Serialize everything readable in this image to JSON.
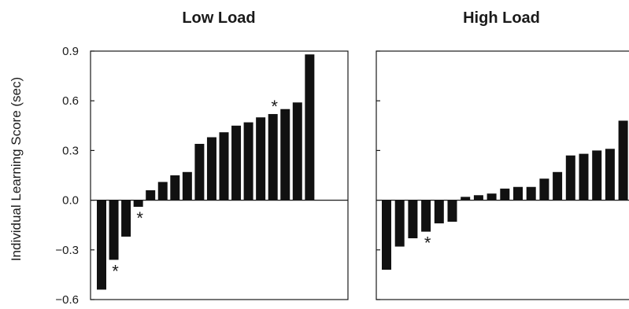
{
  "chart_data": {
    "type": "bar",
    "ylabel": "Individual Learning Score (sec)",
    "ylim": [
      -0.6,
      0.9
    ],
    "yticks": [
      "0.9",
      "0.6",
      "0.3",
      "0.0",
      "−0.3",
      "−0.6"
    ],
    "ytick_values": [
      0.9,
      0.6,
      0.3,
      0.0,
      -0.3,
      -0.6
    ],
    "bar_color": "#111111",
    "annotation_symbol": "*",
    "panels": [
      {
        "title": "Low Load",
        "values": [
          -0.54,
          -0.36,
          -0.22,
          -0.04,
          0.06,
          0.11,
          0.15,
          0.17,
          0.34,
          0.38,
          0.41,
          0.45,
          0.47,
          0.5,
          0.52,
          0.55,
          0.59,
          0.88
        ],
        "marked": [
          1,
          3,
          14
        ]
      },
      {
        "title": "High Load",
        "values": [
          -0.42,
          -0.28,
          -0.23,
          -0.19,
          -0.14,
          -0.13,
          0.02,
          0.03,
          0.04,
          0.07,
          0.08,
          0.08,
          0.13,
          0.17,
          0.27,
          0.28,
          0.3,
          0.31,
          0.48
        ],
        "marked": [
          3
        ]
      }
    ]
  }
}
